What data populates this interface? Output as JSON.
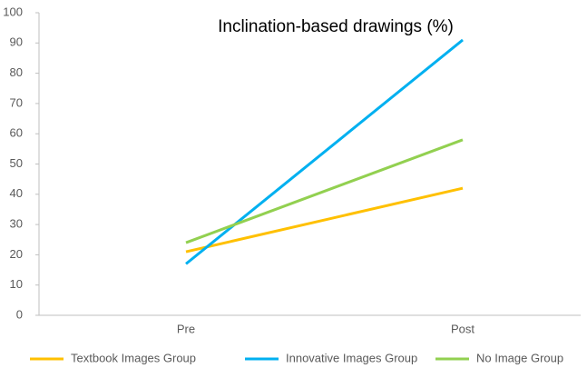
{
  "chart_data": {
    "type": "line",
    "title": "Inclination-based drawings (%)",
    "categories": [
      "Pre",
      "Post"
    ],
    "series": [
      {
        "name": "Textbook Images Group",
        "color": "#ffc000",
        "values": [
          21,
          42
        ]
      },
      {
        "name": "Innovative Images Group",
        "color": "#00b0f0",
        "values": [
          17,
          91
        ]
      },
      {
        "name": "No Image Group",
        "color": "#92d050",
        "values": [
          24,
          58
        ]
      }
    ],
    "ylim": [
      0,
      100
    ],
    "yticks": [
      0,
      10,
      20,
      30,
      40,
      50,
      60,
      70,
      80,
      90,
      100
    ],
    "grid": false,
    "legend": "bottom"
  }
}
